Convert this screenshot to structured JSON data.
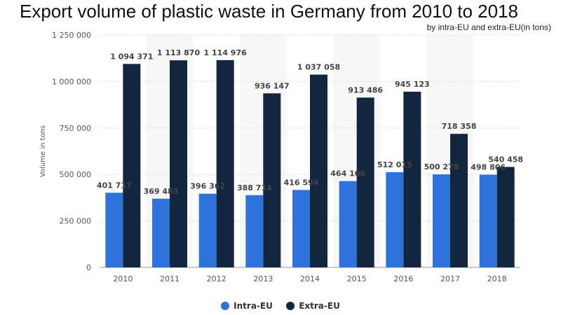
{
  "title": "Export volume of plastic waste in Germany from 2010 to 2018",
  "subtitle": "by intra-EU and extra-EU(in tons)",
  "chart_data": {
    "type": "bar",
    "ylabel": "Volume in tons",
    "xlabel": "",
    "ylim": [
      0,
      1250000
    ],
    "yticks": [
      0,
      250000,
      500000,
      750000,
      1000000,
      1250000
    ],
    "ytick_labels": [
      "0",
      "250 000",
      "500 000",
      "750 000",
      "1 000 000",
      "1 250 000"
    ],
    "grid": true,
    "legend_position": "bottom",
    "categories": [
      "2010",
      "2011",
      "2012",
      "2013",
      "2014",
      "2015",
      "2016",
      "2017",
      "2018"
    ],
    "series": [
      {
        "name": "Intra-EU",
        "color": "#2e72db",
        "values": [
          401717,
          369483,
          396362,
          388714,
          416594,
          464106,
          512015,
          500278,
          498806
        ],
        "labels": [
          "401 717",
          "369 483",
          "396 362",
          "388 714",
          "416 594",
          "464 106",
          "512 015",
          "500 278",
          "498 806"
        ]
      },
      {
        "name": "Extra-EU",
        "color": "#13263f",
        "values": [
          1094371,
          1113870,
          1114976,
          936147,
          1037058,
          913486,
          945123,
          718358,
          540458
        ],
        "labels": [
          "1 094 371",
          "1 113 870",
          "1 114 976",
          "936 147",
          "1 037 058",
          "913 486",
          "945 123",
          "718 358",
          "540 458"
        ]
      }
    ]
  }
}
